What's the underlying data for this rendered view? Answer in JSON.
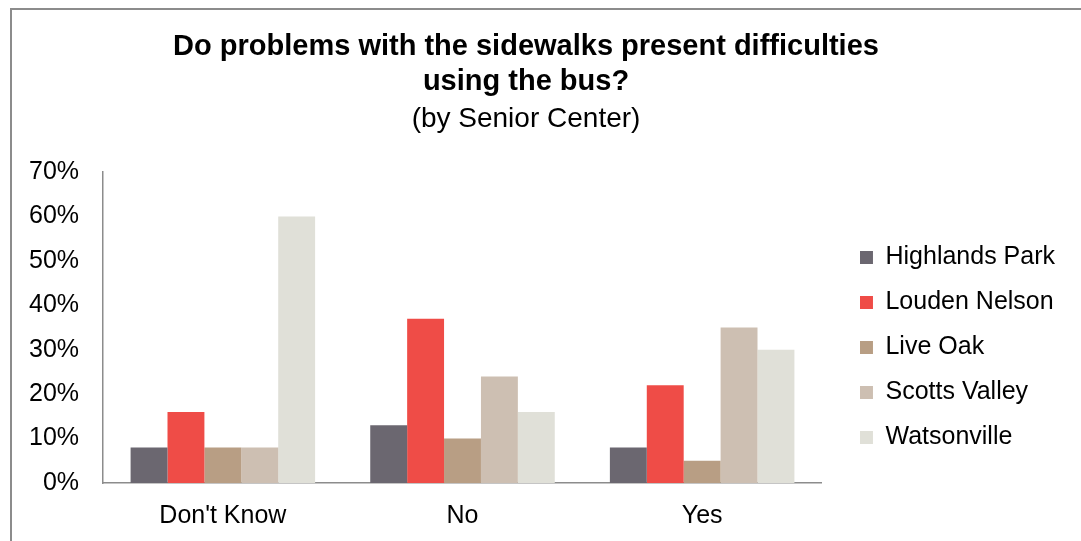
{
  "chart_data": {
    "type": "bar",
    "title": "Do problems with the sidewalks present difficulties using the bus?",
    "subtitle": "(by Senior Center)",
    "categories": [
      "Don't Know",
      "No",
      "Yes"
    ],
    "series": [
      {
        "name": "Highlands Park",
        "color": "#6b6770",
        "values": [
          8,
          13,
          8
        ]
      },
      {
        "name": "Louden Nelson",
        "color": "#ef4c47",
        "values": [
          16,
          37,
          22
        ]
      },
      {
        "name": "Live Oak",
        "color": "#b89e84",
        "values": [
          8,
          10,
          5
        ]
      },
      {
        "name": "Scotts Valley",
        "color": "#cdbfb2",
        "values": [
          8,
          24,
          35
        ]
      },
      {
        "name": "Watsonville",
        "color": "#e0e0d8",
        "values": [
          60,
          16,
          30
        ]
      }
    ],
    "ylim": [
      0,
      70
    ],
    "yticks": [
      {
        "value": 0,
        "label": "0%"
      },
      {
        "value": 10,
        "label": "10%"
      },
      {
        "value": 20,
        "label": "20%"
      },
      {
        "value": 30,
        "label": "30%"
      },
      {
        "value": 40,
        "label": "40%"
      },
      {
        "value": 50,
        "label": "50%"
      },
      {
        "value": 60,
        "label": "60%"
      },
      {
        "value": 70,
        "label": "70%"
      }
    ],
    "grid": false,
    "legend": "right"
  }
}
